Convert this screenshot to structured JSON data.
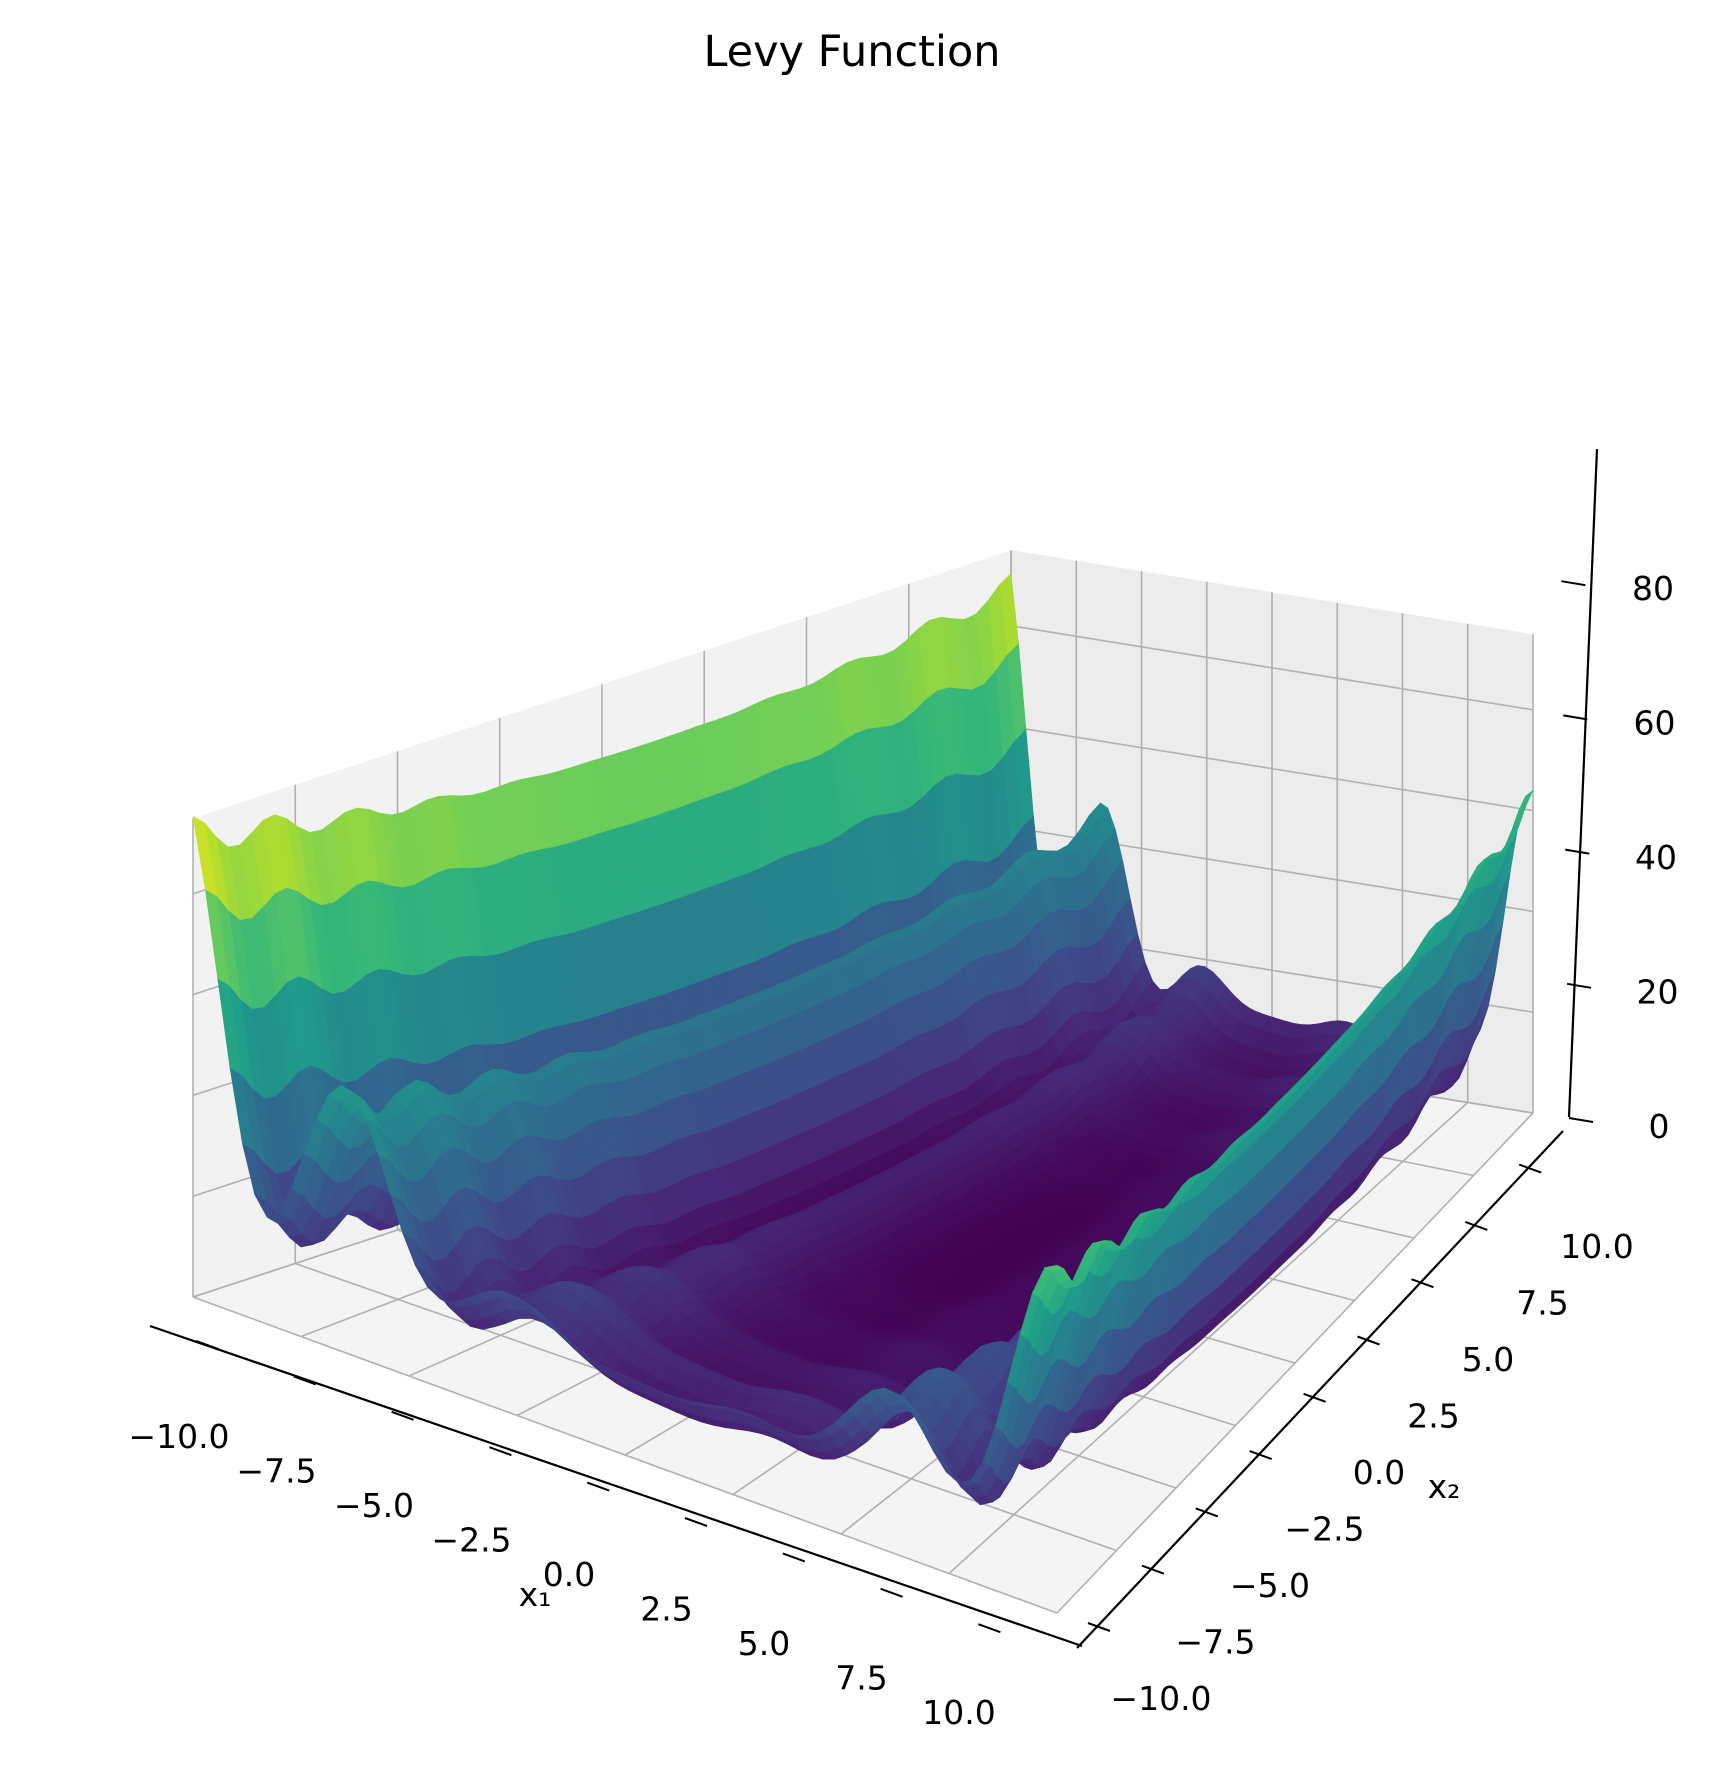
{
  "chart_data": {
    "type": "surface",
    "title": "Levy Function",
    "xlabel": "x₁",
    "ylabel": "x₂",
    "zlabel": "",
    "xlim": [
      -10,
      10
    ],
    "ylim": [
      -10,
      10
    ],
    "zlim": [
      0,
      95
    ],
    "x_ticks": [
      "−10.0",
      "−7.5",
      "−5.0",
      "−2.5",
      "0.0",
      "2.5",
      "5.0",
      "7.5",
      "10.0"
    ],
    "y_ticks": [
      "−10.0",
      "−7.5",
      "−5.0",
      "−2.5",
      "0.0",
      "2.5",
      "5.0",
      "7.5",
      "10.0"
    ],
    "z_ticks": [
      "0",
      "20",
      "40",
      "60",
      "80"
    ],
    "colormap": "viridis",
    "function": "levy",
    "grid": true
  }
}
